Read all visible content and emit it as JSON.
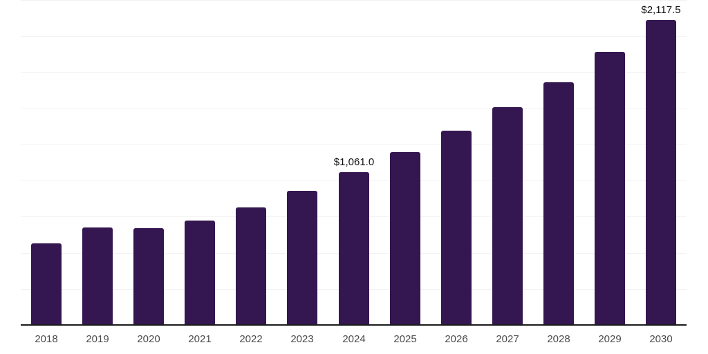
{
  "colors": {
    "background": "#ffffff",
    "bar": "#341650",
    "axis_line": "#1a1a1a",
    "gridline": "#f2f2f2",
    "tick_label": "#4a4a4a",
    "data_label": "#111111"
  },
  "chart_data": {
    "type": "bar",
    "title": "",
    "xlabel": "",
    "ylabel": "",
    "categories": [
      "2018",
      "2019",
      "2020",
      "2021",
      "2022",
      "2023",
      "2024",
      "2025",
      "2026",
      "2027",
      "2028",
      "2029",
      "2030"
    ],
    "values": [
      570,
      680,
      674,
      730,
      820,
      935,
      1061.0,
      1203,
      1349,
      1513,
      1686,
      1897,
      2117.5
    ],
    "value_labels": [
      {
        "category": "2024",
        "text": "$1,061.0"
      },
      {
        "category": "2030",
        "text": "$2,117.5"
      }
    ],
    "ylim": [
      0,
      2250
    ],
    "grid_step": 250,
    "grid": "horizontal",
    "legend": false,
    "y_axis_tick_labels_visible": false
  }
}
